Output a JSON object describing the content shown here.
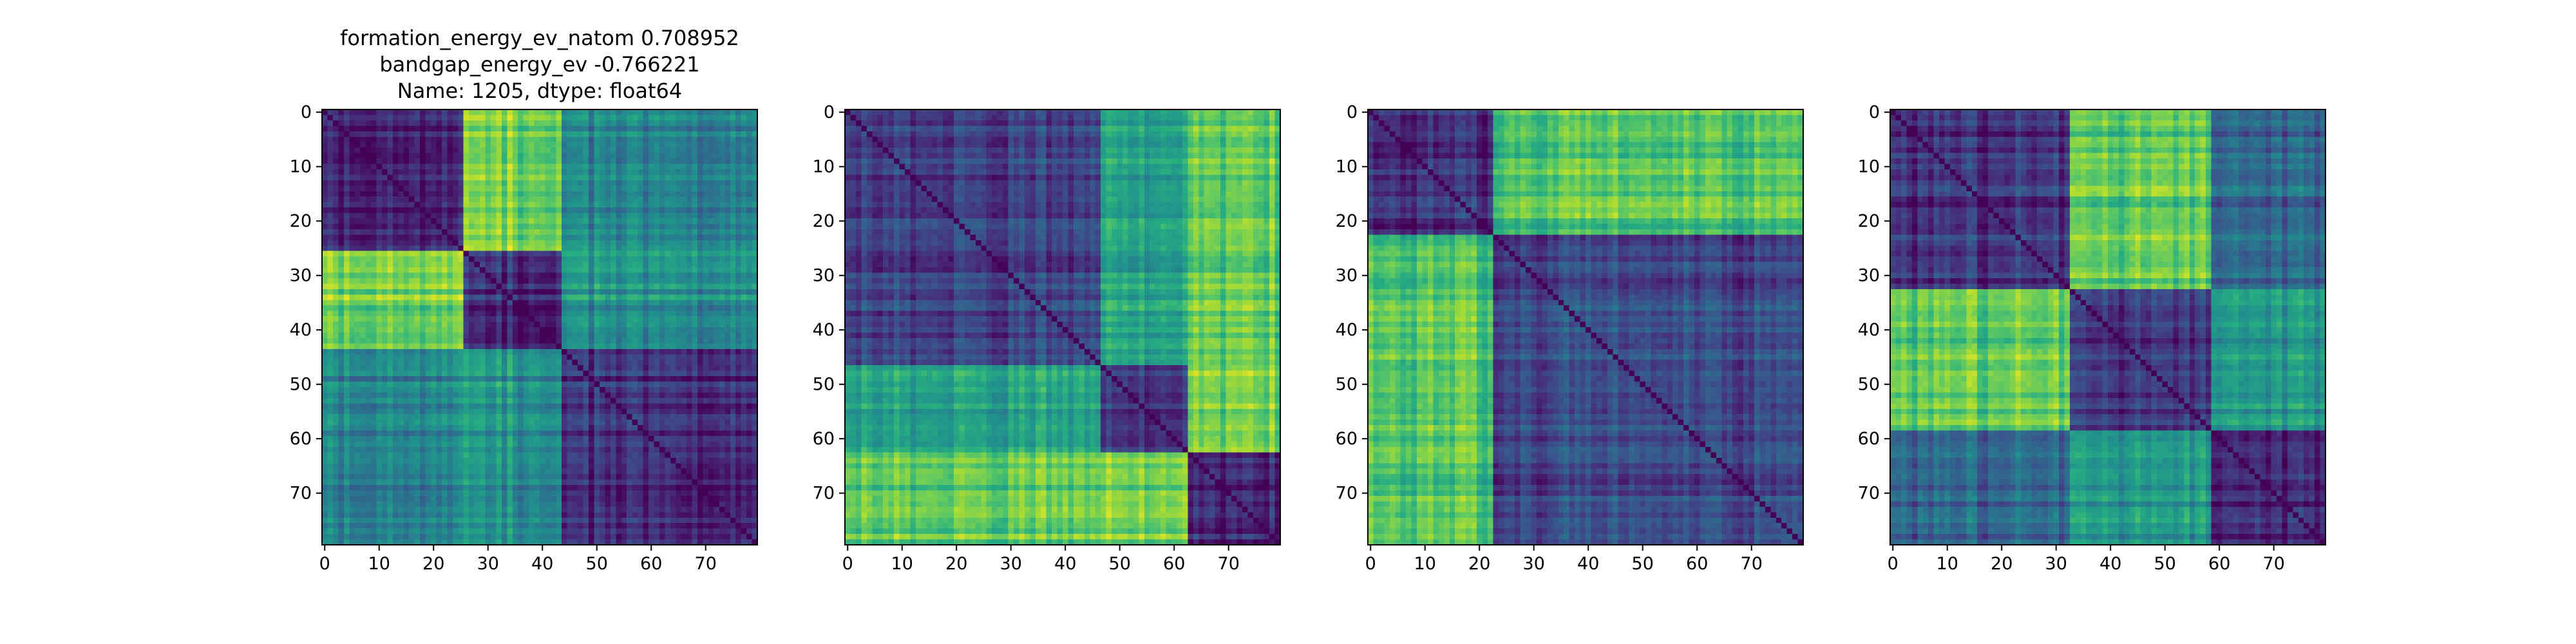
{
  "figure": {
    "title_lines": [
      "formation_energy_ev_natom    0.708952",
      "bandgap_energy_ev          -0.766221",
      "Name: 1205, dtype: float64"
    ]
  },
  "chart_data": [
    {
      "type": "heatmap",
      "title": "",
      "colormap": "viridis",
      "n": 80,
      "blocks": [
        0,
        26,
        44,
        80
      ],
      "xticks": [
        0,
        10,
        20,
        30,
        40,
        50,
        60,
        70
      ],
      "yticks": [
        0,
        10,
        20,
        30,
        40,
        50,
        60,
        70
      ],
      "xlim": [
        0,
        80
      ],
      "ylim": [
        80,
        0
      ],
      "approx_block_values": [
        [
          0.12,
          0.8,
          0.45
        ],
        [
          0.8,
          0.12,
          0.5
        ],
        [
          0.45,
          0.5,
          0.12
        ]
      ]
    },
    {
      "type": "heatmap",
      "title": "",
      "colormap": "viridis",
      "n": 80,
      "blocks": [
        0,
        47,
        63,
        80
      ],
      "xticks": [
        0,
        10,
        20,
        30,
        40,
        50,
        60,
        70
      ],
      "yticks": [
        0,
        10,
        20,
        30,
        40,
        50,
        60,
        70
      ],
      "xlim": [
        0,
        80
      ],
      "ylim": [
        80,
        0
      ],
      "approx_block_values": [
        [
          0.22,
          0.6,
          0.78
        ],
        [
          0.6,
          0.18,
          0.82
        ],
        [
          0.78,
          0.82,
          0.12
        ]
      ]
    },
    {
      "type": "heatmap",
      "title": "",
      "colormap": "viridis",
      "n": 80,
      "blocks": [
        0,
        23,
        80
      ],
      "xticks": [
        0,
        10,
        20,
        30,
        40,
        50,
        60,
        70
      ],
      "yticks": [
        0,
        10,
        20,
        30,
        40,
        50,
        60,
        70
      ],
      "xlim": [
        0,
        80
      ],
      "ylim": [
        80,
        0
      ],
      "approx_block_values": [
        [
          0.12,
          0.72
        ],
        [
          0.72,
          0.22
        ]
      ]
    },
    {
      "type": "heatmap",
      "title": "",
      "colormap": "viridis",
      "n": 80,
      "blocks": [
        0,
        33,
        59,
        80
      ],
      "xticks": [
        0,
        10,
        20,
        30,
        40,
        50,
        60,
        70
      ],
      "yticks": [
        0,
        10,
        20,
        30,
        40,
        50,
        60,
        70
      ],
      "xlim": [
        0,
        80
      ],
      "ylim": [
        80,
        0
      ],
      "approx_block_values": [
        [
          0.15,
          0.75,
          0.35
        ],
        [
          0.75,
          0.15,
          0.55
        ],
        [
          0.35,
          0.55,
          0.15
        ]
      ]
    }
  ]
}
